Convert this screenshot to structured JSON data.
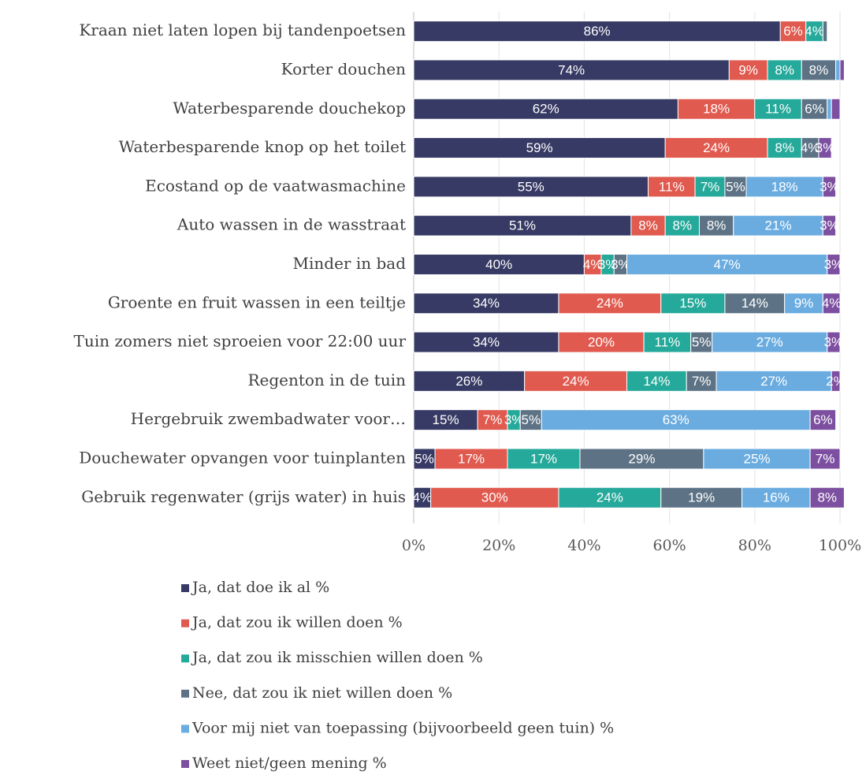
{
  "chart_data": {
    "type": "stacked_barh",
    "categories": [
      "Kraan niet laten lopen bij tandenpoetsen",
      "Korter douchen",
      "Waterbesparende douchekop",
      "Waterbesparende knop op het toilet",
      "Ecostand op de vaatwasmachine",
      "Auto wassen in de wasstraat",
      "Minder in bad",
      "Groente en fruit wassen in een teiltje",
      "Tuin zomers niet sproeien voor 22:00 uur",
      "Regenton in de tuin",
      "Hergebruik zwembadwater voor…",
      "Douchewater opvangen voor tuinplanten",
      "Gebruik regenwater (grijs water) in huis"
    ],
    "series": [
      {
        "name": "Ja, dat doe ik al %",
        "color": "#363a64",
        "values": [
          86,
          74,
          62,
          59,
          55,
          51,
          40,
          34,
          34,
          26,
          15,
          5,
          4
        ],
        "value_labels": [
          "86%",
          "74%",
          "62%",
          "59%",
          "55%",
          "51%",
          "40%",
          "34%",
          "34%",
          "26%",
          "15%",
          "5%",
          "4%"
        ]
      },
      {
        "name": "Ja, dat zou ik willen doen %",
        "color": "#e05a4f",
        "values": [
          6,
          9,
          18,
          24,
          11,
          8,
          4,
          24,
          20,
          24,
          7,
          17,
          30
        ],
        "value_labels": [
          "6%",
          "9%",
          "18%",
          "24%",
          "11%",
          "8%",
          "4%",
          "24%",
          "20%",
          "24%",
          "7%",
          "17%",
          "30%"
        ]
      },
      {
        "name": "Ja, dat zou ik misschien willen doen %",
        "color": "#25a99a",
        "values": [
          4,
          8,
          11,
          8,
          7,
          8,
          3,
          15,
          11,
          14,
          3,
          17,
          24
        ],
        "value_labels": [
          "4%",
          "8%",
          "11%",
          "8%",
          "7%",
          "8%",
          "3%",
          "15%",
          "11%",
          "14%",
          "3%",
          "17%",
          "24%"
        ]
      },
      {
        "name": "Nee, dat zou ik niet willen doen %",
        "color": "#5d7385",
        "values": [
          1,
          8,
          6,
          4,
          5,
          8,
          3,
          14,
          5,
          7,
          5,
          29,
          19
        ],
        "value_labels": [
          null,
          "8%",
          "6%",
          "4%",
          "5%",
          "8%",
          "3%",
          "14%",
          "5%",
          "7%",
          "5%",
          "29%",
          "19%"
        ]
      },
      {
        "name": "Voor mij niet van toepassing (bijvoorbeeld geen tuin) %",
        "color": "#6aace0",
        "values": [
          0,
          1,
          1,
          0,
          18,
          21,
          47,
          9,
          27,
          27,
          63,
          25,
          16
        ],
        "value_labels": [
          null,
          null,
          null,
          null,
          "18%",
          "21%",
          "47%",
          "9%",
          "27%",
          "27%",
          "63%",
          "25%",
          "16%"
        ]
      },
      {
        "name": "Weet niet/geen mening %",
        "color": "#7d4fa0",
        "values": [
          0,
          1,
          2,
          3,
          3,
          3,
          3,
          4,
          3,
          2,
          6,
          7,
          8
        ],
        "value_labels": [
          null,
          null,
          null,
          "3%",
          "3%",
          "3%",
          "3%",
          "4%",
          "3%",
          "2%",
          "6%",
          "7%",
          "8%"
        ]
      }
    ],
    "xlim": [
      0,
      100
    ],
    "xticks": [
      {
        "value": 0,
        "label": "0%"
      },
      {
        "value": 20,
        "label": "20%"
      },
      {
        "value": 40,
        "label": "40%"
      },
      {
        "value": 60,
        "label": "60%"
      },
      {
        "value": 80,
        "label": "80%"
      },
      {
        "value": 100,
        "label": "100%"
      }
    ],
    "grid": true,
    "legend": "bottom"
  }
}
